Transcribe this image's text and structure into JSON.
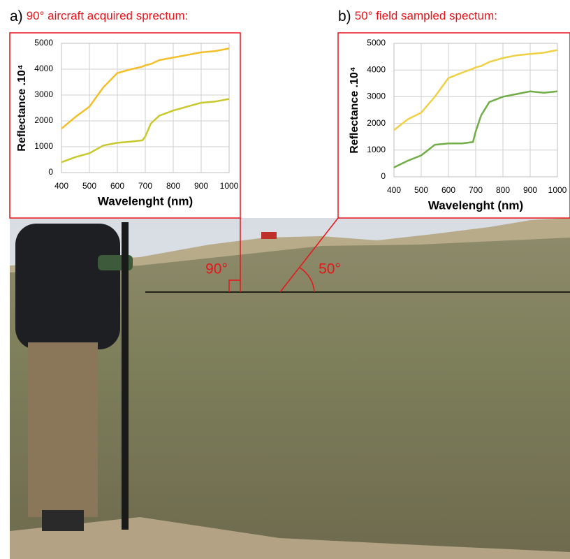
{
  "chart_data": [
    {
      "type": "line",
      "panel_label": "a)",
      "title": "90° aircraft acquired sprectum:",
      "xlabel": "Wavelenght (nm)",
      "ylabel": "Reflectance .10⁴",
      "x": [
        400,
        450,
        500,
        550,
        600,
        650,
        690,
        700,
        720,
        750,
        800,
        850,
        900,
        950,
        1000
      ],
      "series": [
        {
          "color": "#f2bf2a",
          "values": [
            1700,
            2150,
            2550,
            3300,
            3850,
            4000,
            4100,
            4150,
            4200,
            4350,
            4450,
            4550,
            4650,
            4700,
            4800
          ]
        },
        {
          "color": "#c9c92e",
          "values": [
            400,
            600,
            750,
            1050,
            1150,
            1200,
            1250,
            1400,
            1900,
            2200,
            2400,
            2550,
            2700,
            2750,
            2850
          ]
        }
      ],
      "xlim": [
        400,
        1000
      ],
      "xticks": [
        400,
        500,
        600,
        700,
        800,
        900,
        1000
      ],
      "ylim": [
        0,
        5000
      ],
      "yticks": [
        0,
        1000,
        2000,
        3000,
        4000,
        5000
      ],
      "grid": true
    },
    {
      "type": "line",
      "panel_label": "b)",
      "title": "50° field sampled spectum:",
      "xlabel": "Wavelenght (nm)",
      "ylabel": "Reflectance .10⁴",
      "x": [
        400,
        450,
        500,
        550,
        600,
        650,
        690,
        700,
        720,
        750,
        800,
        850,
        900,
        950,
        1000
      ],
      "series": [
        {
          "color": "#f0d045",
          "values": [
            1750,
            2150,
            2400,
            3000,
            3700,
            3900,
            4050,
            4100,
            4150,
            4300,
            4450,
            4550,
            4600,
            4650,
            4750
          ]
        },
        {
          "color": "#70ad47",
          "values": [
            350,
            600,
            800,
            1200,
            1250,
            1250,
            1300,
            1700,
            2300,
            2800,
            3000,
            3100,
            3200,
            3150,
            3200
          ]
        }
      ],
      "xlim": [
        400,
        1000
      ],
      "xticks": [
        400,
        500,
        600,
        700,
        800,
        900,
        1000
      ],
      "ylim": [
        0,
        5000
      ],
      "yticks": [
        0,
        1000,
        2000,
        3000,
        4000,
        5000
      ],
      "grid": true
    }
  ],
  "photo": {
    "angle_labels": [
      "90°",
      "50°"
    ]
  }
}
